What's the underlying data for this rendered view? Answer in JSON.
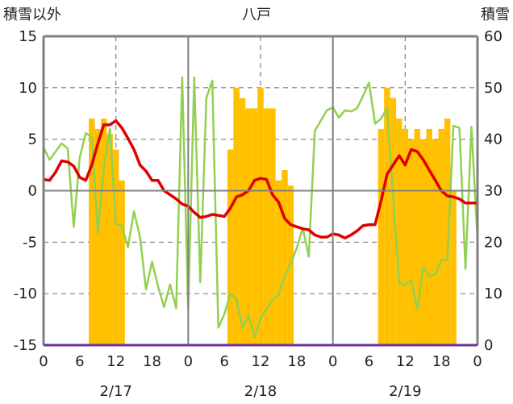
{
  "chart_data": {
    "type": "bar+line",
    "title": "八戸",
    "left_axis_label": "積雪以外",
    "right_axis_label": "積雪",
    "left_ylim": [
      -15,
      15
    ],
    "left_ticks": [
      15,
      10,
      5,
      0,
      -5,
      -10,
      -15
    ],
    "right_ylim": [
      0,
      60
    ],
    "right_ticks": [
      60,
      50,
      40,
      30,
      20,
      10,
      0
    ],
    "xlim": [
      0,
      72
    ],
    "x_tick_values": [
      0,
      6,
      12,
      18,
      24,
      30,
      36,
      42,
      48,
      54,
      60,
      66,
      72
    ],
    "x_tick_labels": [
      "0",
      "6",
      "12",
      "18",
      "0",
      "6",
      "12",
      "18",
      "0",
      "6",
      "12",
      "18",
      "0"
    ],
    "date_labels": [
      {
        "x": 12,
        "label": "2/17"
      },
      {
        "x": 36,
        "label": "2/18"
      },
      {
        "x": 60,
        "label": "2/19"
      }
    ],
    "day_dividers": [
      24,
      48
    ],
    "dashed_verticals": [
      12,
      36,
      60
    ],
    "dashed_horizontals": [
      10,
      5,
      -5,
      -10
    ],
    "grid": true,
    "colors": {
      "snow_bars": "#FFC000",
      "temperature_line": "#E00000",
      "green_line": "#92D050",
      "baseline": "#7030A0",
      "axis": "#808080",
      "grid": "#808080"
    },
    "bars": {
      "name": "積雪",
      "axis": "right",
      "values": [
        {
          "x": 8,
          "v": 44
        },
        {
          "x": 9,
          "v": 42
        },
        {
          "x": 10,
          "v": 44
        },
        {
          "x": 11,
          "v": 41
        },
        {
          "x": 12,
          "v": 38
        },
        {
          "x": 13,
          "v": 32
        },
        {
          "x": 31,
          "v": 38
        },
        {
          "x": 32,
          "v": 50
        },
        {
          "x": 33,
          "v": 48
        },
        {
          "x": 34,
          "v": 46
        },
        {
          "x": 35,
          "v": 46
        },
        {
          "x": 36,
          "v": 50
        },
        {
          "x": 37,
          "v": 46
        },
        {
          "x": 38,
          "v": 46
        },
        {
          "x": 39,
          "v": 32
        },
        {
          "x": 40,
          "v": 34
        },
        {
          "x": 41,
          "v": 31
        },
        {
          "x": 56,
          "v": 42
        },
        {
          "x": 57,
          "v": 50
        },
        {
          "x": 58,
          "v": 48
        },
        {
          "x": 59,
          "v": 44
        },
        {
          "x": 60,
          "v": 42
        },
        {
          "x": 61,
          "v": 40
        },
        {
          "x": 62,
          "v": 42
        },
        {
          "x": 63,
          "v": 40
        },
        {
          "x": 64,
          "v": 42
        },
        {
          "x": 65,
          "v": 40
        },
        {
          "x": 66,
          "v": 42
        },
        {
          "x": 67,
          "v": 44
        },
        {
          "x": 68,
          "v": 30
        }
      ]
    },
    "series": [
      {
        "axis": "left",
        "color": "#92D050",
        "x": [
          0,
          1,
          2,
          3,
          4,
          5,
          6,
          7,
          8,
          9,
          10,
          11,
          12,
          13,
          14,
          15,
          16,
          17,
          18,
          19,
          20,
          21,
          22,
          23,
          24,
          25,
          26,
          27,
          28,
          29,
          30,
          31,
          32,
          33,
          34,
          35,
          36,
          37,
          38,
          39,
          40,
          41,
          42,
          43,
          44,
          45,
          46,
          47,
          48,
          49,
          50,
          51,
          52,
          53,
          54,
          55,
          56,
          57,
          58,
          59,
          60,
          61,
          62,
          63,
          64,
          65,
          66,
          67,
          68,
          69,
          70,
          71,
          72
        ],
        "values": [
          4.2,
          3.0,
          3.8,
          4.6,
          4.1,
          -3.5,
          3.2,
          5.6,
          5.2,
          -4.1,
          2.2,
          6.0,
          -3.2,
          -3.4,
          -5.5,
          -2.0,
          -4.5,
          -9.6,
          -6.9,
          -9.3,
          -11.3,
          -9.1,
          -11.4,
          11.0,
          -11.5,
          11.0,
          -8.9,
          9.0,
          10.7,
          -13.3,
          -12.0,
          -10.0,
          -10.5,
          -13.3,
          -12.1,
          -14.2,
          -12.4,
          -11.5,
          -10.6,
          -10.1,
          -8.3,
          -7.1,
          -5.6,
          -3.6,
          -6.4,
          5.8,
          6.8,
          7.8,
          8.1,
          7.1,
          7.8,
          7.7,
          8.0,
          9.2,
          10.5,
          6.5,
          7.0,
          8.0,
          -0.7,
          -8.9,
          -9.2,
          -8.7,
          -11.5,
          -7.4,
          -8.3,
          -8.1,
          -6.7,
          -6.7,
          6.3,
          6.1,
          -7.6,
          6.2,
          -4.8
        ]
      },
      {
        "axis": "left",
        "color": "#E00000",
        "x": [
          0,
          1,
          2,
          3,
          4,
          5,
          6,
          7,
          8,
          9,
          10,
          11,
          12,
          13,
          14,
          15,
          16,
          17,
          18,
          19,
          20,
          21,
          22,
          23,
          24,
          25,
          26,
          27,
          28,
          29,
          30,
          31,
          32,
          33,
          34,
          35,
          36,
          37,
          38,
          39,
          40,
          41,
          42,
          43,
          44,
          45,
          46,
          47,
          48,
          49,
          50,
          51,
          52,
          53,
          54,
          55,
          56,
          57,
          58,
          59,
          60,
          61,
          62,
          63,
          64,
          65,
          66,
          67,
          68,
          69,
          70,
          71,
          72
        ],
        "values": [
          1.1,
          1.0,
          1.8,
          2.9,
          2.8,
          2.4,
          1.3,
          1.0,
          2.5,
          4.6,
          6.4,
          6.4,
          6.8,
          6.1,
          5.1,
          4.0,
          2.5,
          1.9,
          1.0,
          1.0,
          0.0,
          -0.4,
          -0.8,
          -1.3,
          -1.5,
          -2.1,
          -2.6,
          -2.5,
          -2.3,
          -2.4,
          -2.5,
          -1.7,
          -0.6,
          -0.4,
          0.0,
          1.0,
          1.2,
          1.1,
          -0.4,
          -1.1,
          -2.7,
          -3.3,
          -3.5,
          -3.7,
          -3.8,
          -4.3,
          -4.5,
          -4.5,
          -4.2,
          -4.3,
          -4.6,
          -4.3,
          -3.9,
          -3.4,
          -3.3,
          -3.3,
          -1.0,
          1.6,
          2.5,
          3.4,
          2.5,
          4.0,
          3.8,
          3.0,
          2.0,
          1.0,
          0.0,
          -0.5,
          -0.6,
          -0.8,
          -1.2,
          -1.2,
          -1.2
        ]
      }
    ]
  }
}
